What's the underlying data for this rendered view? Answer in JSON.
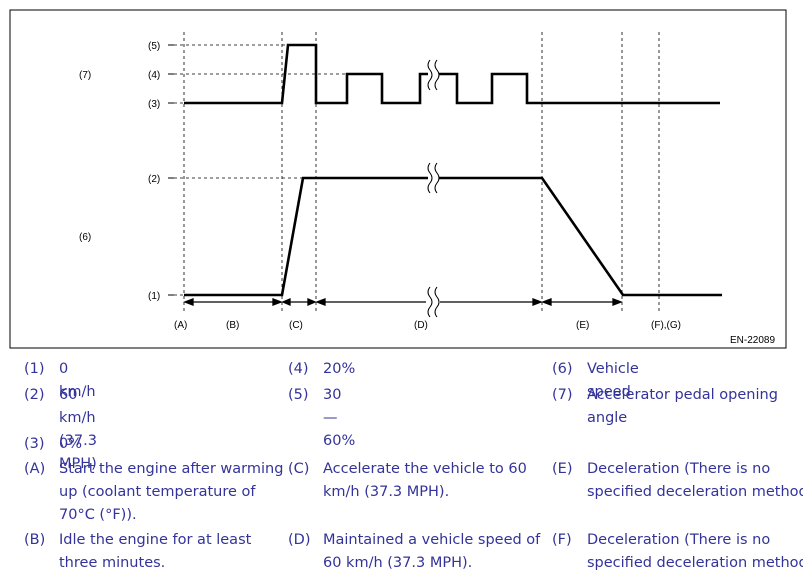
{
  "diagram": {
    "y_labels": {
      "l5": "(5)",
      "l4": "(4)",
      "l3": "(3)",
      "l2": "(2)",
      "l1": "(1)",
      "l7": "(7)",
      "l6": "(6)"
    },
    "x_labels": {
      "a": "(A)",
      "b": "(B)",
      "c": "(C)",
      "d": "(D)",
      "e": "(E)",
      "fg": "(F),(G)"
    },
    "code": "EN-22089"
  },
  "legend": {
    "i1": {
      "k": "(1)",
      "t": "0 km/h"
    },
    "i2": {
      "k": "(2)",
      "t": "60 km/h (37.3 MPH)"
    },
    "i3": {
      "k": "(3)",
      "t": "0%"
    },
    "i4": {
      "k": "(4)",
      "t": "20%"
    },
    "i5": {
      "k": "(5)",
      "t": "30 — 60%"
    },
    "i6": {
      "k": "(6)",
      "t": "Vehicle speed"
    },
    "i7": {
      "k": "(7)",
      "t1": "Accelerator pedal opening",
      "t2": "angle"
    },
    "ia": {
      "k": "(A)",
      "t1": "Start the engine after warming",
      "t2": "up (coolant temperature of",
      "t3": "70°C (°F))."
    },
    "ib": {
      "k": "(B)",
      "t1": "Idle the engine for at least",
      "t2": "three minutes."
    },
    "ic": {
      "k": "(C)",
      "t1": "Accelerate the vehicle to 60",
      "t2": "km/h (37.3 MPH)."
    },
    "id": {
      "k": "(D)",
      "t1": "Maintained a vehicle speed of",
      "t2": "60 km/h (37.3 MPH)."
    },
    "ie": {
      "k": "(E)",
      "t1": "Deceleration (There is no",
      "t2": "specified deceleration method)"
    },
    "if": {
      "k": "(F)",
      "t1": "Deceleration (There is no",
      "t2": "specified deceleration method)"
    }
  }
}
